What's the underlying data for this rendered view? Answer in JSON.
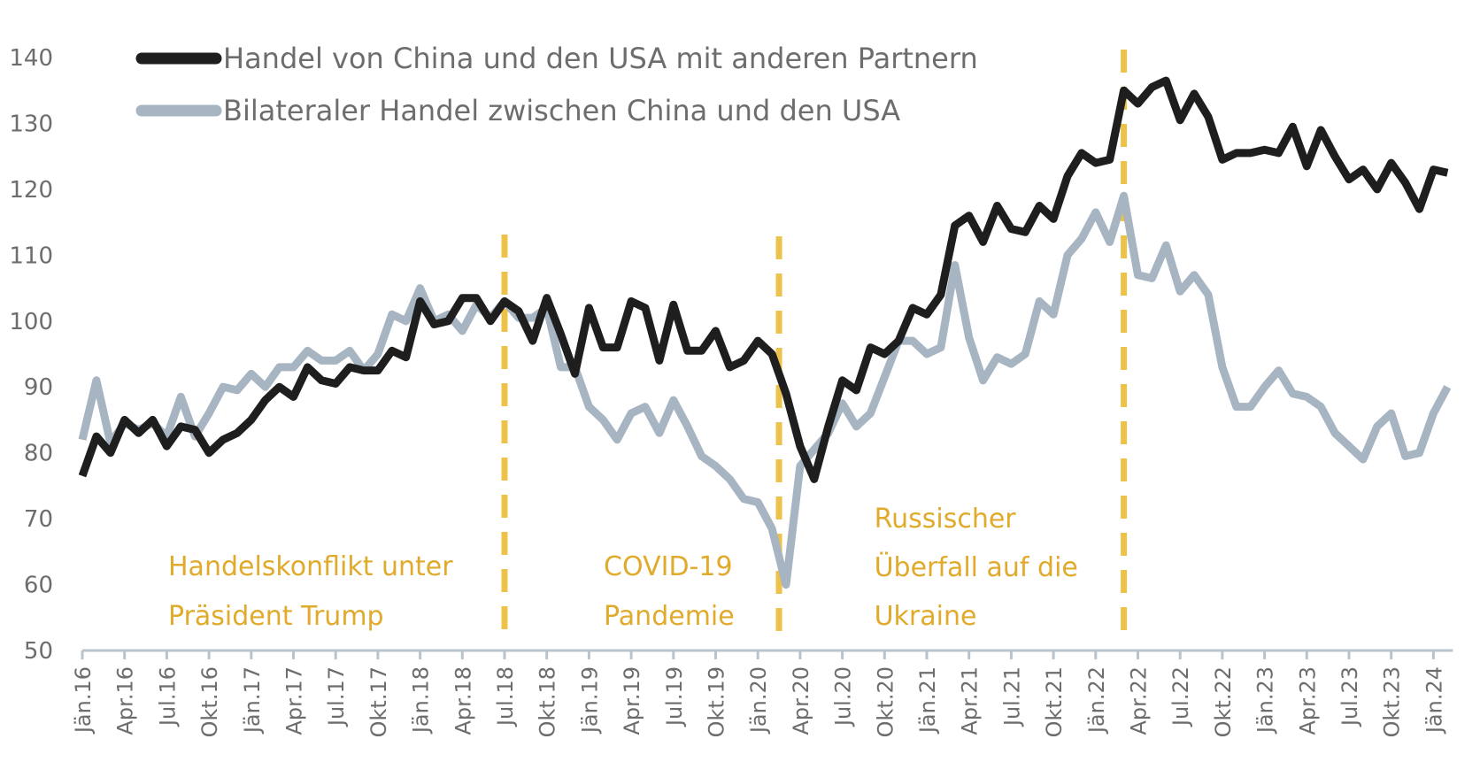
{
  "chart_data": {
    "type": "line",
    "title": "",
    "xlabel": "",
    "ylabel": "",
    "ylim": [
      50,
      140
    ],
    "yticks": [
      50,
      60,
      70,
      80,
      90,
      100,
      110,
      120,
      130,
      140
    ],
    "grid": false,
    "legend_position": "top-left",
    "x_start": "Jän.16",
    "x_tick_every_months": 3,
    "x_tick_labels": [
      "Jän.16",
      "Apr.16",
      "Jul.16",
      "Okt.16",
      "Jän.17",
      "Apr.17",
      "Jul.17",
      "Okt.17",
      "Jän.18",
      "Apr.18",
      "Jul.18",
      "Okt.18",
      "Jän.19",
      "Apr.19",
      "Jul.19",
      "Okt.19",
      "Jän.20",
      "Apr.20",
      "Jul.20",
      "Okt.20",
      "Jän.21",
      "Apr.21",
      "Jul.21",
      "Okt.21",
      "Jän.22",
      "Apr.22",
      "Jul.22",
      "Okt.22",
      "Jän.23",
      "Apr.23",
      "Jul.23",
      "Okt.23",
      "Jän.24"
    ],
    "series": [
      {
        "name": "Handel von China und den USA mit anderen Partnern",
        "color": "#1e1e1e",
        "values": [
          76.5,
          82.5,
          80,
          85,
          83,
          85,
          81,
          84,
          83.5,
          80,
          82,
          83,
          85,
          88,
          90,
          88.5,
          93,
          91,
          90.5,
          93,
          92.5,
          92.5,
          95.5,
          94.5,
          103,
          99.5,
          100,
          103.5,
          103.5,
          100,
          103,
          101.5,
          97,
          103.5,
          98,
          92,
          102,
          96,
          96,
          103,
          102,
          94,
          102.5,
          95.5,
          95.5,
          98.5,
          93,
          94,
          97,
          95,
          89,
          81,
          76,
          84,
          91,
          89.5,
          96,
          95,
          97,
          102,
          101,
          104,
          114.5,
          116,
          112,
          117.5,
          114,
          113.5,
          117.5,
          115.5,
          122,
          125.5,
          124,
          124.5,
          135,
          133,
          135.5,
          136.5,
          130.5,
          134.5,
          131,
          124.5,
          125.5,
          125.5,
          126,
          125.5,
          129.5,
          123.5,
          129,
          125,
          121.5,
          123,
          120,
          124,
          121,
          117,
          123,
          122.5
        ]
      },
      {
        "name": "Bilateraler Handel zwischen China und den USA",
        "color": "#a7b4c1",
        "values": [
          82,
          91,
          81.5,
          84.5,
          83.5,
          84.5,
          82.5,
          88.5,
          82.5,
          86,
          90,
          89.5,
          92,
          90,
          93,
          93,
          95.5,
          94,
          94,
          95.5,
          92.5,
          95,
          101,
          100,
          105,
          100,
          101,
          98.5,
          102.5,
          100.5,
          103,
          100.5,
          100.5,
          102,
          93,
          93,
          87,
          85,
          82,
          86,
          87,
          83,
          88,
          84,
          79.5,
          78,
          76,
          73,
          72.5,
          68.5,
          60,
          78,
          80.5,
          83,
          87.5,
          84,
          86,
          91.5,
          97,
          97,
          95,
          96,
          108.5,
          97.5,
          91,
          94.5,
          93.5,
          95,
          103,
          101,
          110,
          112.5,
          116.5,
          112,
          119,
          107,
          106.5,
          111.5,
          104.5,
          107,
          104,
          93,
          87,
          87,
          90,
          92.5,
          89,
          88.5,
          87,
          83,
          81,
          79,
          84,
          86,
          79.5,
          80,
          86,
          90
        ]
      }
    ],
    "event_lines": [
      {
        "month_index": 30,
        "label_lines": [
          "Handelskonflikt unter",
          "Präsident Trump"
        ],
        "label_side": "left"
      },
      {
        "month_index": 49.5,
        "label_lines": [
          "COVID-19",
          "Pandemie"
        ],
        "label_side": "left"
      },
      {
        "month_index": 74,
        "label_lines": [
          "Russischer",
          "Überfall auf die",
          "Ukraine"
        ],
        "label_side": "left"
      }
    ],
    "event_color": "#ecc24a",
    "annotation_color": "#e0aa2b",
    "axis_color": "#b9c3cc"
  }
}
